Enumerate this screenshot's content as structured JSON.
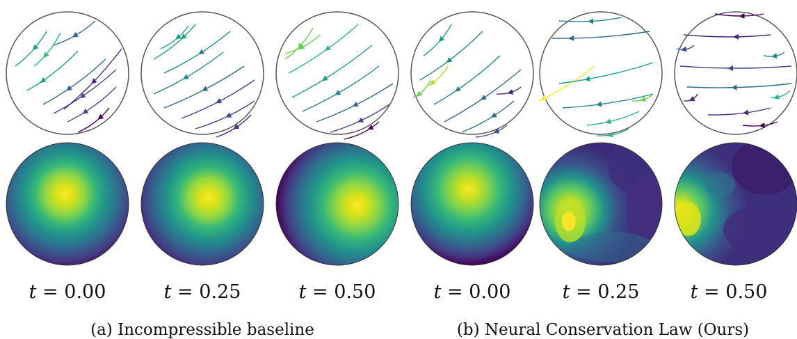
{
  "panels": [
    {
      "group": "a",
      "t_label": "0.00"
    },
    {
      "group": "a",
      "t_label": "0.25"
    },
    {
      "group": "a",
      "t_label": "0.50"
    },
    {
      "group": "b",
      "t_label": "0.00"
    },
    {
      "group": "b",
      "t_label": "0.25"
    },
    {
      "group": "b",
      "t_label": "0.50"
    }
  ],
  "t_symbol": "t",
  "t_equals": " = ",
  "captions": {
    "a": "(a) Incompressible baseline",
    "b": "(b) Neural Conservation Law (Ours)"
  },
  "colormap": "viridis",
  "colors": {
    "viridis_dark": "#440154",
    "viridis_blue": "#31688e",
    "viridis_teal": "#21918c",
    "viridis_green": "#35b779",
    "viridis_yellow": "#fde725",
    "circle_outline": "#555555"
  }
}
